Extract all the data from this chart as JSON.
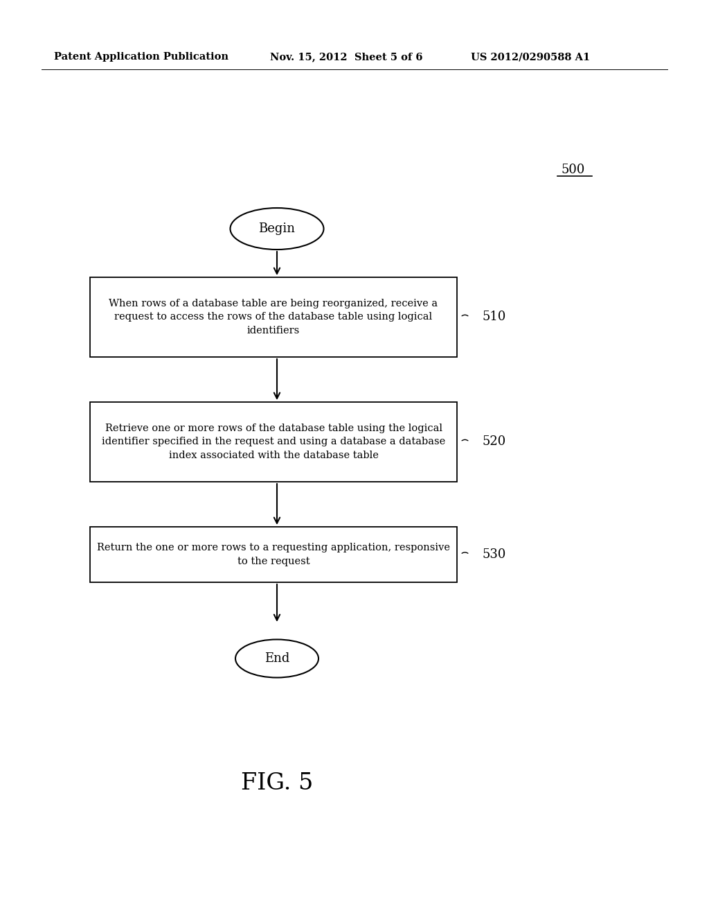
{
  "bg_color": "#ffffff",
  "header_left": "Patent Application Publication",
  "header_center": "Nov. 15, 2012  Sheet 5 of 6",
  "header_right": "US 2012/0290588 A1",
  "fig_label": "500",
  "figure_caption": "FIG. 5",
  "begin_label": "Begin",
  "end_label": "End",
  "box510_text": "When rows of a database table are being reorganized, receive a\nrequest to access the rows of the database table using logical\nidentifiers",
  "box510_label": "510",
  "box520_text": "Retrieve one or more rows of the database table using the logical\nidentifier specified in the request and using a database a database\nindex associated with the database table",
  "box520_label": "520",
  "box530_text": "Return the one or more rows to a requesting application, responsive\nto the request",
  "box530_label": "530",
  "text_color": "#000000",
  "box_edge_color": "#000000",
  "arrow_color": "#000000",
  "header_fontsize": 10.5,
  "body_fontsize": 10.5,
  "label_fontsize": 13,
  "caption_fontsize": 24
}
